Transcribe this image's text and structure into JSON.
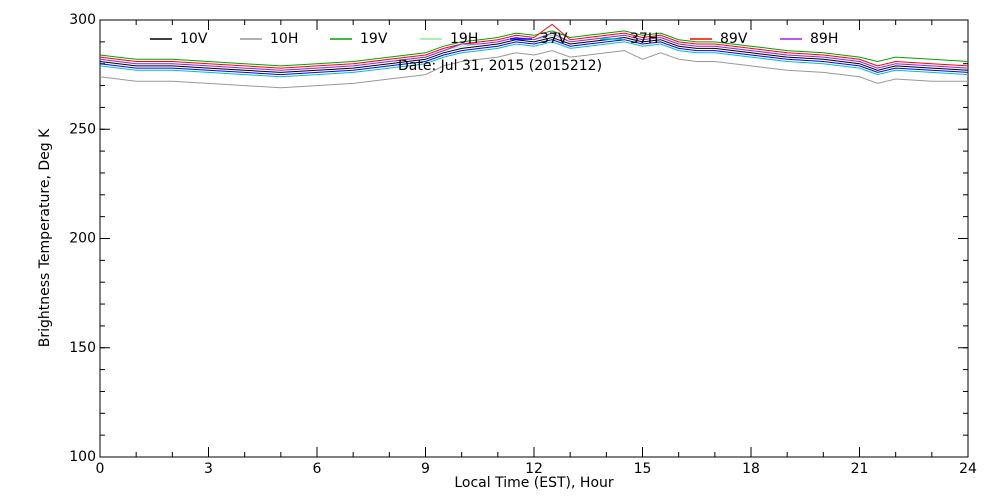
{
  "chart_data": {
    "type": "line",
    "x_label": "Local Time (EST), Hour",
    "y_label": "Brightness Temperature, Deg K",
    "annotation": "Date: Jul 31, 2015 (2015212)",
    "x": [
      0,
      1,
      2,
      3,
      4,
      5,
      6,
      7,
      8,
      9,
      9.5,
      10,
      10.5,
      11,
      11.5,
      12,
      12.5,
      13,
      13.5,
      14,
      14.5,
      15,
      15.5,
      16,
      16.5,
      17,
      18,
      19,
      20,
      21,
      21.5,
      22,
      23,
      24
    ],
    "xlim": [
      0,
      24
    ],
    "xticks": [
      0,
      3,
      6,
      9,
      12,
      15,
      18,
      21,
      24
    ],
    "xminorticks": [
      0,
      1,
      2,
      3,
      4,
      5,
      6,
      7,
      8,
      9,
      10,
      11,
      12,
      13,
      14,
      15,
      16,
      17,
      18,
      19,
      20,
      21,
      22,
      23,
      24
    ],
    "ylim": [
      100,
      300
    ],
    "yticks": [
      100,
      150,
      200,
      250,
      300
    ],
    "yminorticks": [
      100,
      110,
      120,
      130,
      140,
      150,
      160,
      170,
      180,
      190,
      200,
      210,
      220,
      230,
      240,
      250,
      260,
      270,
      280,
      290,
      300
    ],
    "series": [
      {
        "name": "10V",
        "color": "#000000",
        "values": [
          281,
          279,
          279,
          278,
          277,
          276,
          277,
          278,
          280,
          282,
          285,
          287,
          288,
          289,
          291,
          290,
          292,
          289,
          290,
          291,
          292,
          290,
          291,
          288,
          287,
          287,
          285,
          283,
          282,
          280,
          277,
          279,
          278,
          277
        ]
      },
      {
        "name": "10H",
        "color": "#999999",
        "values": [
          274,
          272,
          272,
          271,
          270,
          269,
          270,
          271,
          273,
          275,
          279,
          281,
          282,
          283,
          285,
          284,
          286,
          283,
          284,
          285,
          286,
          282,
          285,
          282,
          281,
          281,
          279,
          277,
          276,
          274,
          271,
          273,
          272,
          272
        ]
      },
      {
        "name": "19V",
        "color": "#00a000",
        "values": [
          284,
          282,
          282,
          281,
          280,
          279,
          280,
          281,
          283,
          285,
          288,
          290,
          291,
          292,
          294,
          293,
          295,
          292,
          293,
          294,
          295,
          293,
          294,
          291,
          290,
          290,
          288,
          286,
          285,
          283,
          281,
          283,
          282,
          281
        ]
      },
      {
        "name": "19H",
        "color": "#90ee90",
        "values": [
          282,
          280,
          280,
          279,
          278,
          277,
          278,
          279,
          281,
          283,
          286,
          288,
          289,
          290,
          292,
          291,
          293,
          290,
          291,
          292,
          293,
          291,
          292,
          289,
          288,
          288,
          286,
          284,
          283,
          281,
          278,
          280,
          279,
          278
        ]
      },
      {
        "name": "37V",
        "color": "#0000ff",
        "values": [
          280,
          278,
          278,
          277,
          276,
          275,
          276,
          277,
          279,
          281,
          284,
          286,
          287,
          288,
          290,
          289,
          291,
          288,
          289,
          290,
          291,
          289,
          290,
          287,
          286,
          286,
          284,
          282,
          281,
          279,
          276,
          278,
          277,
          276
        ]
      },
      {
        "name": "37H",
        "color": "#00c0c0",
        "values": [
          279,
          277,
          277,
          276,
          275,
          274,
          275,
          276,
          278,
          280,
          283,
          285,
          286,
          287,
          289,
          288,
          290,
          287,
          288,
          289,
          290,
          288,
          289,
          286,
          285,
          285,
          283,
          281,
          280,
          278,
          275,
          277,
          276,
          275
        ]
      },
      {
        "name": "89V",
        "color": "#ff0000",
        "values": [
          283,
          281,
          281,
          280,
          279,
          278,
          279,
          280,
          282,
          284,
          287,
          289,
          290,
          291,
          293,
          292,
          298,
          291,
          292,
          293,
          294,
          292,
          293,
          290,
          289,
          289,
          287,
          285,
          284,
          282,
          279,
          281,
          280,
          279
        ]
      },
      {
        "name": "89H",
        "color": "#a020f0",
        "values": [
          282,
          280,
          280,
          279,
          278,
          277,
          278,
          279,
          281,
          283,
          286,
          289,
          289,
          290,
          292,
          291,
          294,
          290,
          291,
          292,
          293,
          291,
          292,
          289,
          288,
          288,
          286,
          284,
          283,
          281,
          278,
          280,
          279,
          278
        ]
      }
    ]
  }
}
